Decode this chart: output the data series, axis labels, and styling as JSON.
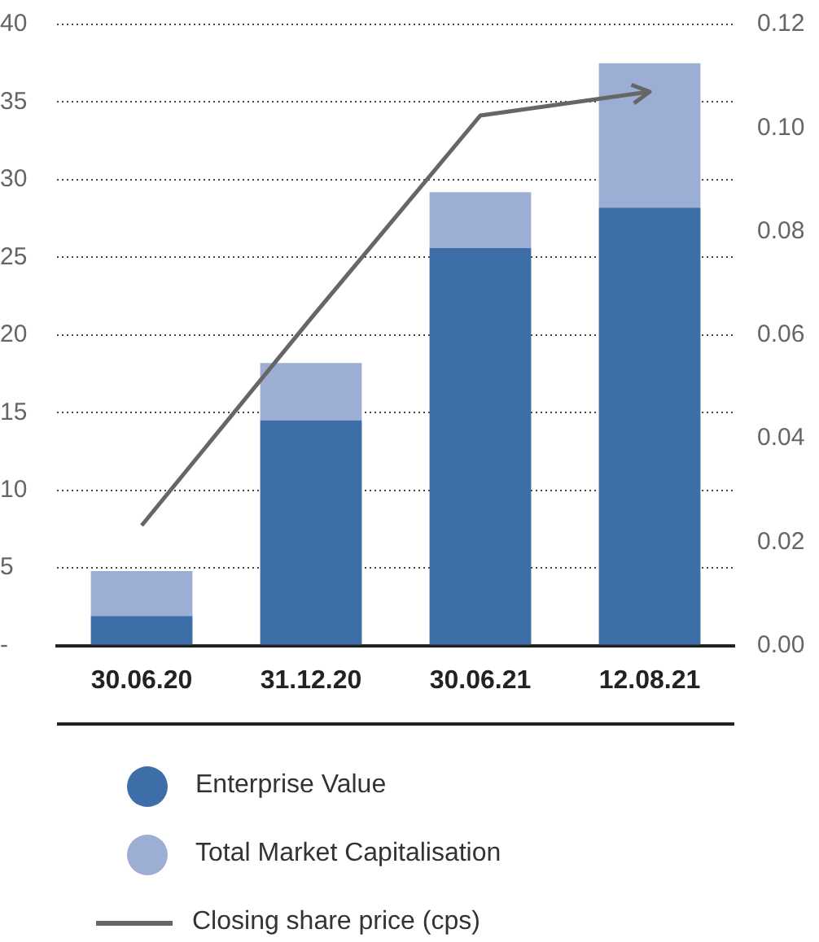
{
  "chart_data": {
    "type": "bar",
    "stacked": true,
    "categories": [
      "30.06.20",
      "31.12.20",
      "30.06.21",
      "12.08.21"
    ],
    "series": [
      {
        "name": "Enterprise Value",
        "color": "#3d6ea8",
        "values": [
          1.9,
          14.5,
          25.6,
          28.2
        ]
      },
      {
        "name": "Total Market Capitalisation",
        "color": "#9caed4",
        "values": [
          2.9,
          3.7,
          3.6,
          9.3
        ]
      },
      {
        "name": "Closing share price (cps)",
        "type": "line",
        "axis": "y2",
        "color": "#666666",
        "values": [
          0.0232,
          0.0632,
          0.1024,
          0.107
        ]
      }
    ],
    "ylim": [
      0,
      40
    ],
    "yticks": [
      {
        "value": 0,
        "label": "-"
      },
      5,
      10,
      15,
      20,
      25,
      30,
      35,
      40
    ],
    "y2lim": [
      0,
      0.12
    ],
    "y2ticks": [
      {
        "value": 0,
        "label": "0.00"
      },
      {
        "value": 0.02,
        "label": "0.02"
      },
      {
        "value": 0.04,
        "label": "0.04"
      },
      {
        "value": 0.06,
        "label": "0.06"
      },
      {
        "value": 0.08,
        "label": "0.08"
      },
      {
        "value": 0.1,
        "label": "0.10"
      },
      {
        "value": 0.12,
        "label": "0.12"
      }
    ],
    "grid": "y",
    "legend": "bottom",
    "marker": "none",
    "line_style": "solid"
  }
}
